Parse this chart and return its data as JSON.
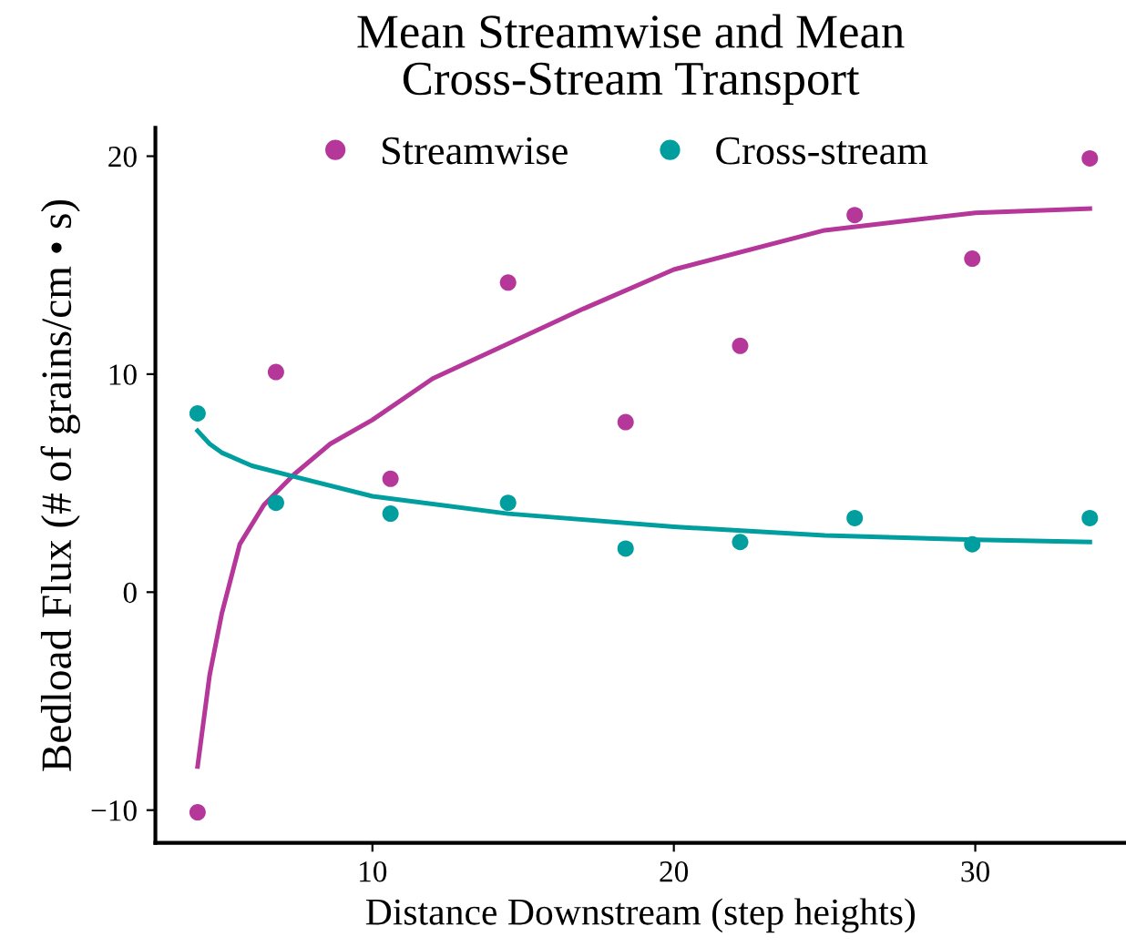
{
  "chart_data": {
    "type": "scatter",
    "title": "Mean Streamwise and Mean\nCross-Stream Transport",
    "xlabel": "Distance Downstream (step heights)",
    "ylabel": "Bedload Flux (# of grains/cm • s)",
    "x": [
      4.2,
      6.8,
      10.6,
      14.5,
      18.4,
      22.2,
      26.0,
      29.9,
      33.8
    ],
    "series": [
      {
        "name": "Streamwise",
        "color": "#b5379a",
        "values": [
          -10.1,
          10.1,
          5.2,
          14.2,
          7.8,
          11.3,
          17.3,
          15.3,
          19.9
        ]
      },
      {
        "name": "Cross-stream",
        "color": "#009e9e",
        "values": [
          8.2,
          4.1,
          3.6,
          4.1,
          2.0,
          2.3,
          3.4,
          2.2,
          3.4
        ]
      },
      {
        "type": "line",
        "marker": "none",
        "color": "#b5379a",
        "x": [
          4.2,
          4.6,
          5.0,
          5.6,
          6.4,
          7.4,
          8.6,
          10,
          12,
          14.5,
          17,
          20,
          25,
          30,
          33.8
        ],
        "values": [
          -8.0,
          -3.8,
          -1.0,
          2.2,
          4.0,
          5.4,
          6.8,
          7.9,
          9.8,
          11.4,
          13.0,
          14.8,
          16.6,
          17.4,
          17.6
        ]
      },
      {
        "type": "line",
        "marker": "none",
        "color": "#009e9e",
        "x": [
          4.2,
          4.6,
          5.0,
          6.0,
          7.4,
          10,
          14.5,
          20,
          25,
          30,
          33.8
        ],
        "values": [
          7.4,
          6.8,
          6.4,
          5.8,
          5.3,
          4.4,
          3.6,
          3.0,
          2.6,
          2.4,
          2.3
        ]
      }
    ],
    "marker": "circle",
    "xlim": [
      2.8,
      35.0
    ],
    "ylim": [
      -11.5,
      21.3
    ],
    "xticks": [
      10,
      20,
      30
    ],
    "yticks": [
      -10,
      0,
      10,
      20
    ],
    "grid": false,
    "legend": "top"
  }
}
